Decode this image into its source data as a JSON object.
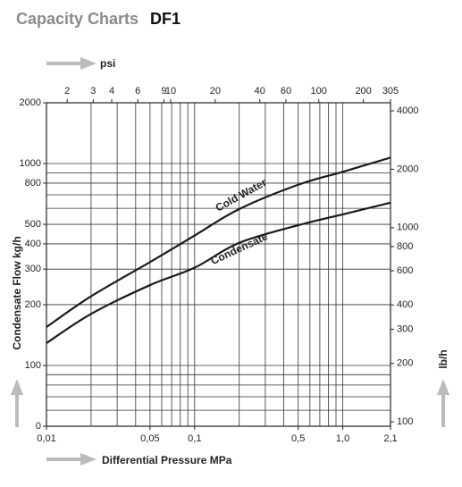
{
  "chart_data": {
    "type": "line",
    "title": "Capacity Charts",
    "subtitle": "DF1",
    "x_label": "Differential Pressure MPa",
    "x2_label": "psi",
    "y_label": "Condensate Flow kg/h",
    "y2_label": "lb/h",
    "log_x": true,
    "log_y": true,
    "xlim": [
      0.01,
      2.1
    ],
    "xticks": [
      {
        "value": 0.01,
        "label": "0,01"
      },
      {
        "value": 0.05,
        "label": "0,05"
      },
      {
        "value": 0.1,
        "label": "0,1"
      },
      {
        "value": 0.5,
        "label": "0,5"
      },
      {
        "value": 1.0,
        "label": "1,0"
      },
      {
        "value": 2.1,
        "label": "2,1"
      }
    ],
    "x2lim": [
      1.45,
      305
    ],
    "x2ticks": [
      2,
      3,
      4,
      6,
      9,
      10,
      20,
      40,
      60,
      100,
      200,
      305
    ],
    "ylim": [
      50,
      2000
    ],
    "yticks": [
      {
        "value": 50,
        "label": "0"
      },
      100,
      200,
      300,
      400,
      500,
      800,
      1000,
      2000
    ],
    "y2lim": [
      95,
      4400
    ],
    "y2ticks": [
      100,
      200,
      300,
      400,
      600,
      800,
      1000,
      2000,
      4000
    ],
    "xgrid": [
      0.02,
      0.03,
      0.04,
      0.05,
      0.06,
      0.07,
      0.08,
      0.09,
      0.1,
      0.2,
      0.3,
      0.4,
      0.5,
      0.6,
      0.7,
      0.8,
      0.9,
      1.0
    ],
    "ygrid": [
      60,
      70,
      80,
      90,
      100,
      200,
      300,
      400,
      500,
      600,
      700,
      800,
      900,
      1000
    ],
    "x": [
      0.01,
      0.02,
      0.05,
      0.1,
      0.2,
      0.5,
      1.0,
      2.1
    ],
    "series": [
      {
        "name": "Cold Water",
        "color": "#1a1a1a",
        "values": [
          155,
          220,
          325,
          440,
          595,
          785,
          910,
          1070
        ]
      },
      {
        "name": "Condensate",
        "color": "#1a1a1a",
        "values": [
          129,
          180,
          250,
          305,
          405,
          495,
          560,
          640
        ]
      }
    ]
  }
}
